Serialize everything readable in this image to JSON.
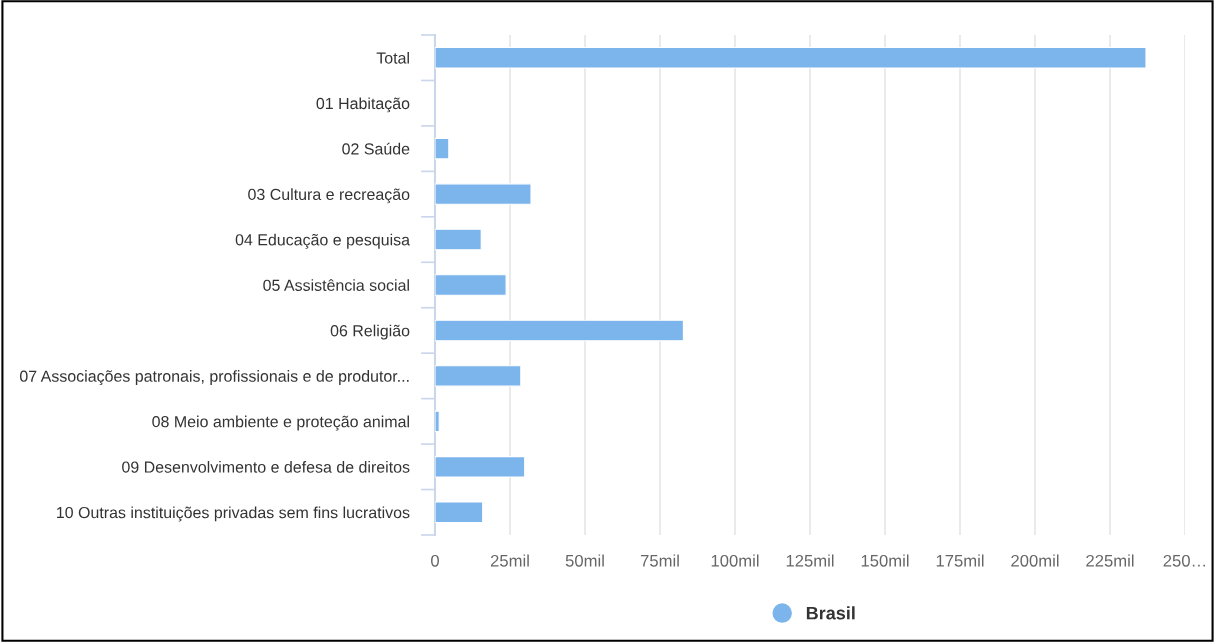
{
  "chart_data": {
    "type": "bar",
    "orientation": "horizontal",
    "categories": [
      "Total",
      "01 Habitação",
      "02 Saúde",
      "03 Cultura e recreação",
      "04 Educação e pesquisa",
      "05 Assistência social",
      "06 Religião",
      "07 Associações patronais, profissionais e de produtor...",
      "08 Meio ambiente e proteção animal",
      "09 Desenvolvimento e defesa de direitos",
      "10 Outras instituições privadas sem fins lucrativos"
    ],
    "series": [
      {
        "name": "Brasil",
        "color": "#7cb5ec",
        "values": [
          237,
          null,
          4.6,
          32,
          15.4,
          23.7,
          82.8,
          28.6,
          1.4,
          29.9,
          15.9
        ]
      }
    ],
    "xlim": [
      0,
      250
    ],
    "xticks": [
      0,
      {
        "value": 25,
        "label": "25mil"
      },
      {
        "value": 50,
        "label": "50mil"
      },
      {
        "value": 75,
        "label": "75mil"
      },
      {
        "value": 100,
        "label": "100mil"
      },
      {
        "value": 125,
        "label": "125mil"
      },
      {
        "value": 150,
        "label": "150mil"
      },
      {
        "value": 175,
        "label": "175mil"
      },
      {
        "value": 200,
        "label": "200mil"
      },
      {
        "value": 225,
        "label": "225mil"
      },
      {
        "value": 250,
        "label": "250…"
      }
    ],
    "grid": "x",
    "legend": "bottom",
    "marker": "circle"
  }
}
